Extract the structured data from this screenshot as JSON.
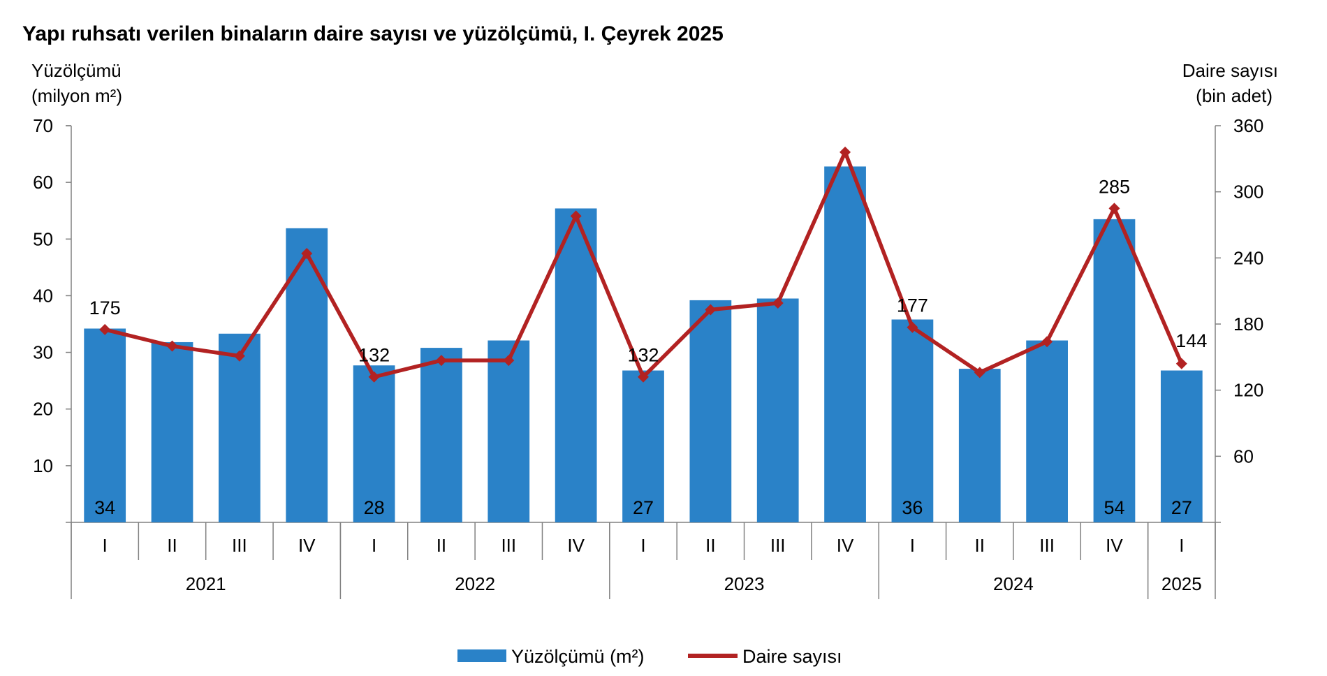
{
  "chart_data": {
    "type": "bar",
    "title": "Yapı ruhsatı verilen binaların daire sayısı ve yüzölçümü, I. Çeyrek 2025",
    "y_left_label": [
      "Yüzölçümü",
      "(milyon m²)"
    ],
    "y_right_label": [
      "Daire sayısı",
      "(bin adet)"
    ],
    "y_left_ticks": [
      "10",
      "20",
      "30",
      "40",
      "50",
      "60",
      "70"
    ],
    "y_left_tick_values": [
      10,
      20,
      30,
      40,
      50,
      60,
      70
    ],
    "y_right_ticks": [
      "60",
      "120",
      "180",
      "240",
      "300",
      "360"
    ],
    "y_right_tick_values": [
      60,
      120,
      180,
      240,
      300,
      360
    ],
    "ylim_left": [
      0,
      70
    ],
    "ylim_right": [
      0,
      360
    ],
    "quarters": [
      "I",
      "II",
      "III",
      "IV",
      "I",
      "II",
      "III",
      "IV",
      "I",
      "II",
      "III",
      "IV",
      "I",
      "II",
      "III",
      "IV",
      "I"
    ],
    "years": [
      {
        "label": "2021",
        "count": 4
      },
      {
        "label": "2022",
        "count": 4
      },
      {
        "label": "2023",
        "count": 4
      },
      {
        "label": "2024",
        "count": 4
      },
      {
        "label": "2025",
        "count": 1
      }
    ],
    "series": [
      {
        "name": "Yüzölçümü (m²)",
        "type": "bar",
        "axis": "left",
        "color": "#2a82c8",
        "values": [
          34.2,
          31.8,
          33.3,
          51.9,
          27.7,
          30.8,
          32.1,
          55.4,
          26.8,
          39.2,
          39.5,
          62.8,
          35.8,
          27.1,
          32.1,
          53.5,
          26.8
        ],
        "labels": [
          "34",
          "",
          "",
          "",
          "28",
          "",
          "",
          "",
          "27",
          "",
          "",
          "",
          "36",
          "",
          "",
          "54",
          "27"
        ]
      },
      {
        "name": "Daire sayısı",
        "type": "line",
        "axis": "right",
        "color": "#b22222",
        "values": [
          175,
          160,
          151,
          244,
          132,
          147,
          147,
          278,
          132,
          193,
          199,
          336,
          177,
          136,
          164,
          285,
          144
        ],
        "labels": [
          "175",
          "",
          "",
          "",
          "132",
          "",
          "",
          "",
          "132",
          "",
          "",
          "",
          "177",
          "",
          "",
          "285",
          "144"
        ]
      }
    ],
    "legend_position": "bottom",
    "grid": false
  }
}
